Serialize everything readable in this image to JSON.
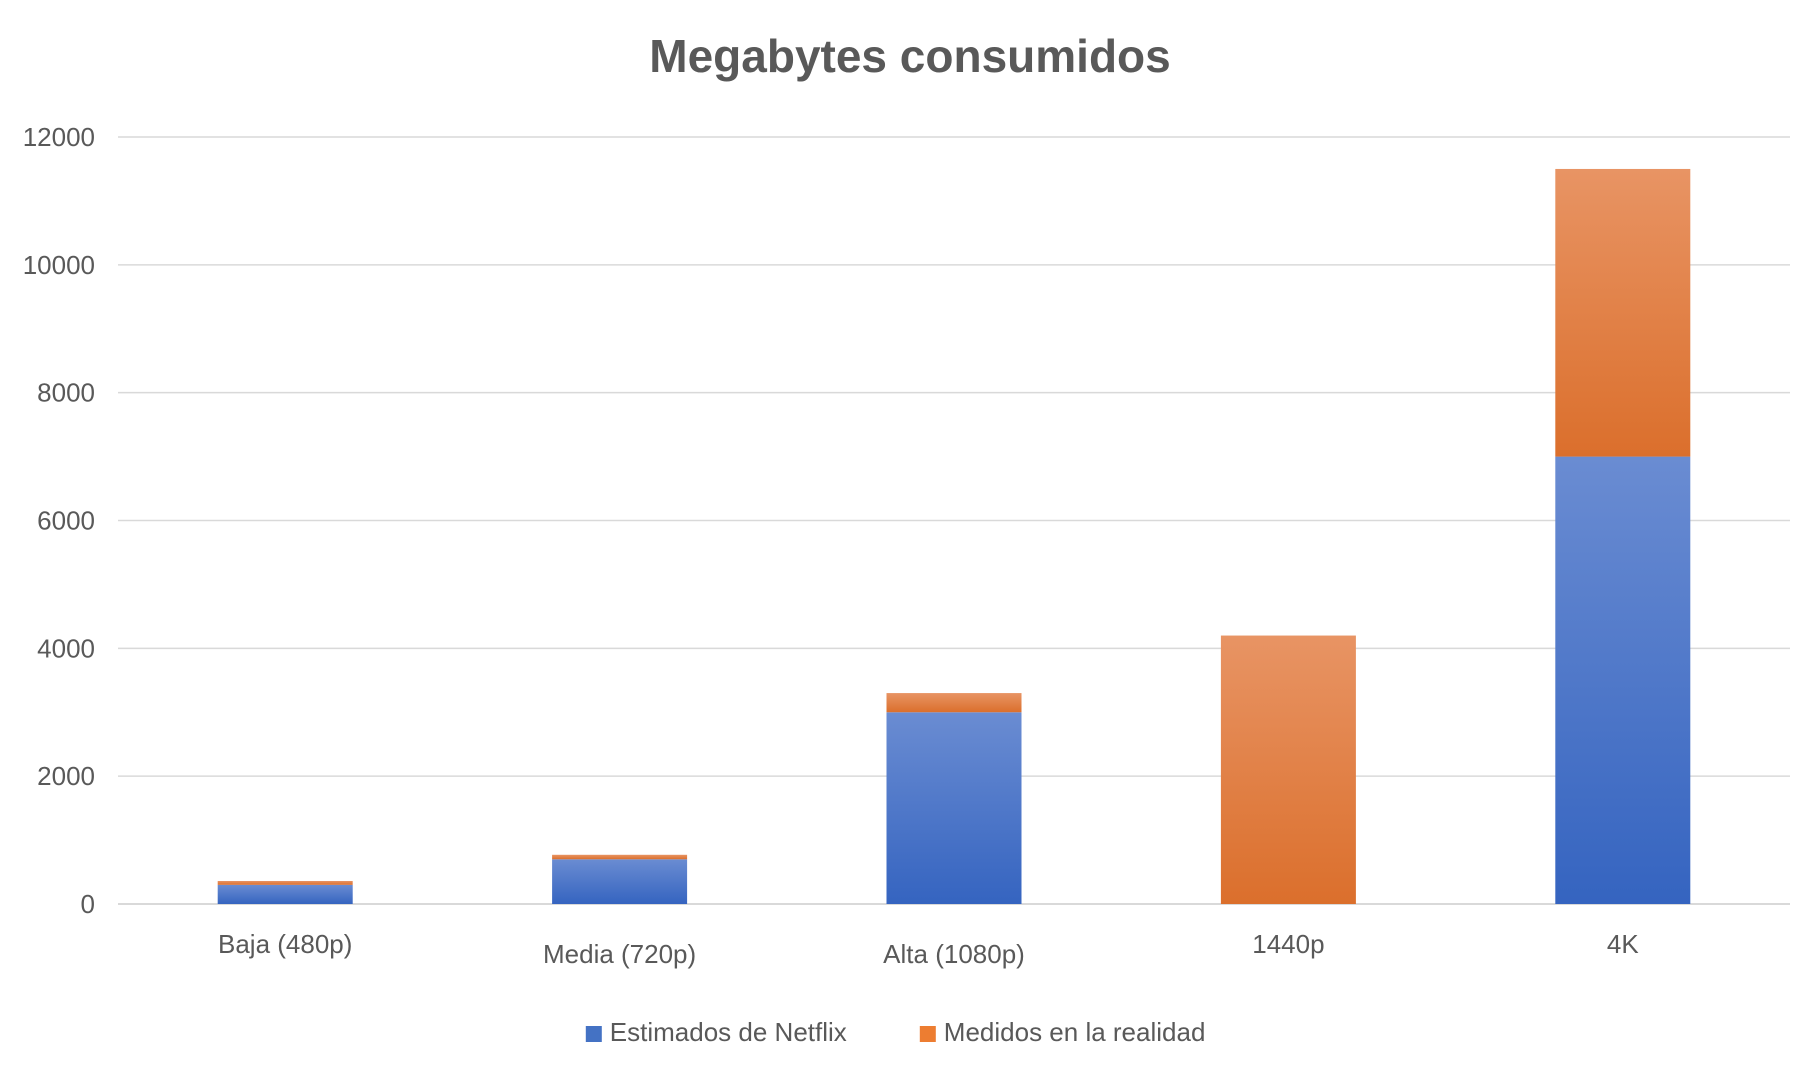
{
  "chart_data": {
    "type": "bar",
    "stacked": true,
    "title": "Megabytes consumidos",
    "xlabel": "",
    "ylabel": "",
    "categories": [
      "Baja (480p)",
      "Media (720p)",
      "Alta (1080p)",
      "1440p",
      "4K"
    ],
    "series": [
      {
        "name": "Estimados de Netflix",
        "color": "#4472C4",
        "values": [
          300,
          700,
          3000,
          0,
          7000
        ]
      },
      {
        "name": "Medidos en la realidad",
        "color": "#ED7D31",
        "values": [
          60,
          70,
          300,
          4200,
          4500
        ]
      }
    ],
    "ylim": [
      0,
      12000
    ],
    "yticks": [
      "0",
      "2000",
      "4000",
      "6000",
      "8000",
      "10000",
      "12000"
    ],
    "grid": true,
    "legend_position": "bottom"
  }
}
